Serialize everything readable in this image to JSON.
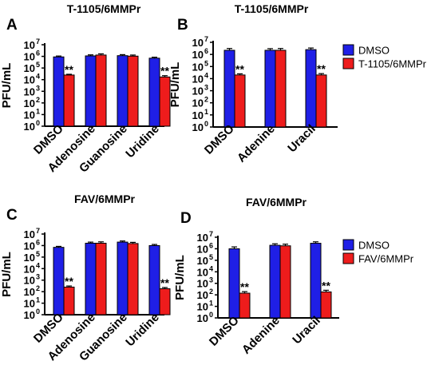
{
  "colors": {
    "dmso": "#1f1fe6",
    "drug": "#ee1c1c",
    "axis": "#000000"
  },
  "legends": [
    {
      "entries": [
        {
          "label": "DMSO",
          "color": "#1f1fe6"
        },
        {
          "label": "T-1105/6MMPr",
          "color": "#ee1c1c"
        }
      ]
    },
    {
      "entries": [
        {
          "label": "DMSO",
          "color": "#1f1fe6"
        },
        {
          "label": "FAV/6MMPr",
          "color": "#ee1c1c"
        }
      ]
    }
  ],
  "chart_data": [
    {
      "panel": "A",
      "type": "bar",
      "title": "T-1105/6MMPr",
      "ylabel": "PFU/mL",
      "yscale": "log",
      "ylim": [
        1,
        10000000
      ],
      "yticks": [
        "10",
        "10",
        "10",
        "10",
        "10",
        "10",
        "10",
        "10"
      ],
      "ytick_exponents": [
        "0",
        "1",
        "2",
        "3",
        "4",
        "5",
        "6",
        "7"
      ],
      "categories": [
        "DMSO",
        "Adenosine",
        "Guanosine",
        "Uridine"
      ],
      "series": [
        {
          "name": "DMSO",
          "values": [
            900000,
            1100000,
            1150000,
            700000
          ],
          "errors": [
            170000,
            250000,
            260000,
            150000
          ]
        },
        {
          "name": "T-1105/6MMPr",
          "values": [
            25000,
            1300000,
            1050000,
            17000
          ],
          "errors": [
            4000,
            350000,
            250000,
            5000
          ]
        }
      ],
      "annotations": [
        {
          "category": "DMSO",
          "text": "**"
        },
        {
          "category": "Uridine",
          "text": "**"
        }
      ]
    },
    {
      "panel": "B",
      "type": "bar",
      "title": "T-1105/6MMPr",
      "ylabel": "PFU/mL",
      "yscale": "log",
      "ylim": [
        1,
        10000000
      ],
      "yticks": [
        "10",
        "10",
        "10",
        "10",
        "10",
        "10",
        "10",
        "10"
      ],
      "ytick_exponents": [
        "0",
        "1",
        "2",
        "3",
        "4",
        "5",
        "6",
        "7"
      ],
      "categories": [
        "DMSO",
        "Adenine",
        "Uracil"
      ],
      "series": [
        {
          "name": "DMSO",
          "values": [
            2200000,
            2200000,
            2500000
          ],
          "errors": [
            900000,
            800000,
            900000
          ]
        },
        {
          "name": "T-1105/6MMPr",
          "values": [
            20000,
            2200000,
            20000
          ],
          "errors": [
            5000,
            900000,
            6000
          ]
        }
      ],
      "annotations": [
        {
          "category": "DMSO",
          "text": "**"
        },
        {
          "category": "Uracil",
          "text": "**"
        }
      ]
    },
    {
      "panel": "C",
      "type": "bar",
      "title": "FAV/6MMPr",
      "ylabel": "PFU/mL",
      "yscale": "log",
      "ylim": [
        1,
        10000000
      ],
      "yticks": [
        "10",
        "10",
        "10",
        "10",
        "10",
        "10",
        "10",
        "10"
      ],
      "ytick_exponents": [
        "0",
        "1",
        "2",
        "3",
        "4",
        "5",
        "6",
        "7"
      ],
      "categories": [
        "DMSO",
        "Adenosine",
        "Guanosine",
        "Uridine"
      ],
      "series": [
        {
          "name": "DMSO",
          "values": [
            700000,
            1600000,
            2000000,
            1000000
          ],
          "errors": [
            150000,
            400000,
            500000,
            250000
          ]
        },
        {
          "name": "FAV/6MMPr",
          "values": [
            250,
            1600000,
            1500000,
            180
          ],
          "errors": [
            60,
            500000,
            400000,
            50
          ]
        }
      ],
      "annotations": [
        {
          "category": "DMSO",
          "text": "**"
        },
        {
          "category": "Uridine",
          "text": "**"
        }
      ]
    },
    {
      "panel": "D",
      "type": "bar",
      "title": "FAV/6MMPr",
      "ylabel": "PFU/mL",
      "yscale": "log",
      "ylim": [
        1,
        10000000
      ],
      "yticks": [
        "10",
        "10",
        "10",
        "10",
        "10",
        "10",
        "10",
        "10"
      ],
      "ytick_exponents": [
        "0",
        "1",
        "2",
        "3",
        "4",
        "5",
        "6",
        "7"
      ],
      "categories": [
        "DMSO",
        "Adenine",
        "Uracil"
      ],
      "series": [
        {
          "name": "DMSO",
          "values": [
            1000000,
            2000000,
            3000000
          ],
          "errors": [
            450000,
            700000,
            1000000
          ]
        },
        {
          "name": "FAV/6MMPr",
          "values": [
            140,
            1800000,
            180
          ],
          "errors": [
            50,
            700000,
            70
          ]
        }
      ],
      "annotations": [
        {
          "category": "DMSO",
          "text": "**"
        },
        {
          "category": "Uracil",
          "text": "**"
        }
      ]
    }
  ]
}
